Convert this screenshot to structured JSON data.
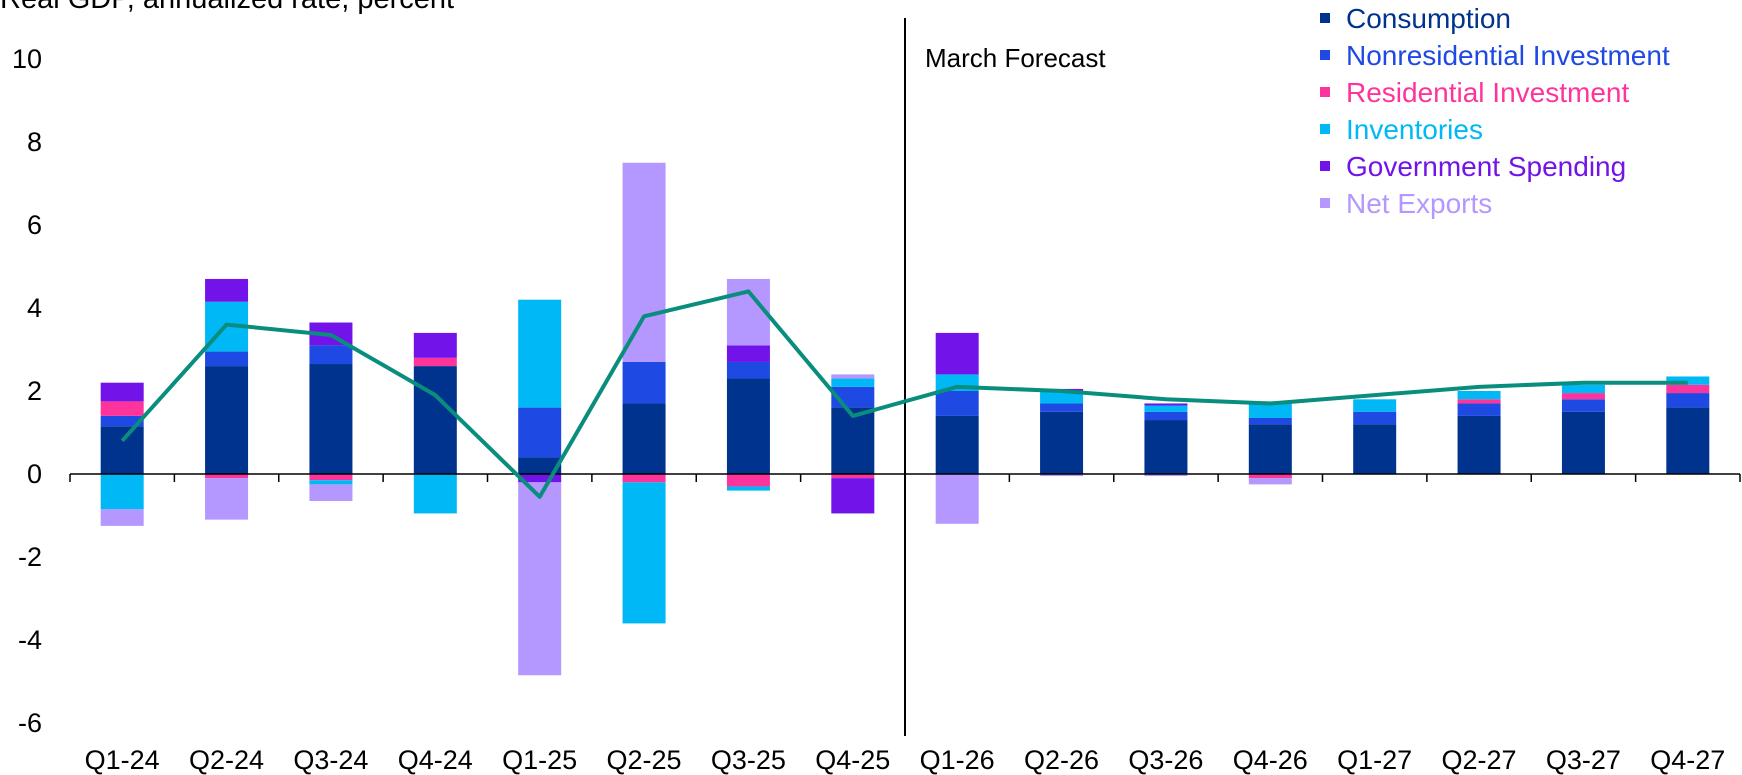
{
  "chart_data": {
    "type": "bar",
    "stacked": true,
    "title": "",
    "ylabel": "Real GDP, annualized rate, percent",
    "xlabel": "",
    "ylim": [
      -6,
      10
    ],
    "yticks": [
      10,
      8,
      6,
      4,
      2,
      0,
      -2,
      -4,
      -6
    ],
    "categories": [
      "Q1-24",
      "Q2-24",
      "Q3-24",
      "Q4-24",
      "Q1-25",
      "Q2-25",
      "Q3-25",
      "Q4-25",
      "Q1-26",
      "Q2-26",
      "Q3-26",
      "Q4-26",
      "Q1-27",
      "Q2-27",
      "Q3-27",
      "Q4-27"
    ],
    "forecast_divider": {
      "after_category": "Q4-25",
      "label": "March Forecast"
    },
    "legend_position": "top-right",
    "series": [
      {
        "name": "Consumption",
        "color": "#00338D",
        "values": [
          1.15,
          2.6,
          2.65,
          2.6,
          0.4,
          1.7,
          2.3,
          1.6,
          1.4,
          1.5,
          1.3,
          1.2,
          1.2,
          1.4,
          1.5,
          1.6
        ]
      },
      {
        "name": "Nonresidential Investment",
        "color": "#1E49E2",
        "values": [
          0.25,
          0.35,
          0.45,
          0,
          1.2,
          1.0,
          0.4,
          0.5,
          0.6,
          0.2,
          0.2,
          0.15,
          0.3,
          0.3,
          0.3,
          0.35
        ]
      },
      {
        "name": "Residential Investment",
        "color": "#FD349C",
        "values": [
          0.35,
          -0.1,
          -0.15,
          0.2,
          0,
          -0.2,
          -0.3,
          -0.1,
          0,
          0,
          0,
          -0.1,
          0,
          0.1,
          0.15,
          0.2
        ]
      },
      {
        "name": "Inventories",
        "color": "#00B8F5",
        "values": [
          -0.85,
          1.2,
          -0.1,
          -0.95,
          2.6,
          -3.4,
          -0.1,
          0.2,
          0.4,
          0.3,
          0.15,
          0.4,
          0.3,
          0.2,
          0.2,
          0.2
        ]
      },
      {
        "name": "Government Spending",
        "color": "#7213EA",
        "values": [
          0.45,
          0.55,
          0.55,
          0.6,
          -0.2,
          0,
          0.4,
          -0.85,
          1.0,
          0.05,
          0.05,
          0,
          0,
          0,
          0,
          0
        ]
      },
      {
        "name": "Net Exports",
        "color": "#B497FF",
        "values": [
          -0.4,
          -1.0,
          -0.4,
          0,
          -4.65,
          4.8,
          1.6,
          0.1,
          -1.2,
          -0.05,
          -0.05,
          -0.15,
          0,
          0,
          0,
          0
        ]
      }
    ],
    "line": {
      "name": "Real GDP",
      "color": "#098E7E",
      "values": [
        0.8,
        3.6,
        3.35,
        1.9,
        -0.55,
        3.8,
        4.4,
        1.4,
        2.1,
        2.0,
        1.8,
        1.7,
        1.9,
        2.1,
        2.2,
        2.2
      ]
    }
  }
}
